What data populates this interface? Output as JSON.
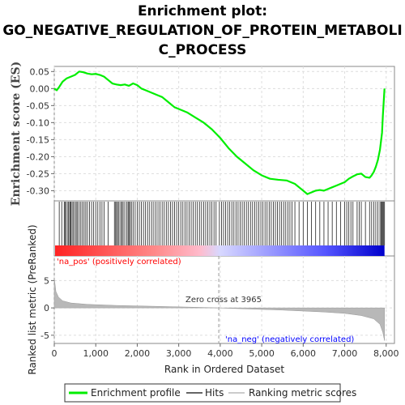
{
  "chart_data": {
    "type": "line",
    "title_lines": [
      "Enrichment plot:",
      "GO_NEGATIVE_REGULATION_OF_PROTEIN_METABOLI",
      "C_PROCESS"
    ],
    "es_panel": {
      "ylabel": "Enrichment score (ES)",
      "ylim": [
        -0.33,
        0.065
      ],
      "yticks": [
        0.05,
        0.0,
        -0.05,
        -0.1,
        -0.15,
        -0.2,
        -0.25,
        -0.3
      ],
      "ytick_labels": [
        "0.05",
        "0.00",
        "-0.05",
        "-0.10",
        "-0.15",
        "-0.20",
        "-0.25",
        "-0.30"
      ],
      "series": [
        {
          "name": "Enrichment profile",
          "color": "#00ee00",
          "points": [
            [
              0,
              0.0
            ],
            [
              60,
              -0.005
            ],
            [
              120,
              0.005
            ],
            [
              200,
              0.02
            ],
            [
              300,
              0.03
            ],
            [
              400,
              0.035
            ],
            [
              500,
              0.04
            ],
            [
              600,
              0.05
            ],
            [
              700,
              0.048
            ],
            [
              800,
              0.044
            ],
            [
              900,
              0.042
            ],
            [
              1000,
              0.043
            ],
            [
              1100,
              0.04
            ],
            [
              1200,
              0.035
            ],
            [
              1300,
              0.025
            ],
            [
              1400,
              0.015
            ],
            [
              1500,
              0.012
            ],
            [
              1600,
              0.01
            ],
            [
              1700,
              0.012
            ],
            [
              1800,
              0.008
            ],
            [
              1900,
              0.015
            ],
            [
              2000,
              0.01
            ],
            [
              2100,
              0.0
            ],
            [
              2200,
              -0.005
            ],
            [
              2300,
              -0.01
            ],
            [
              2400,
              -0.015
            ],
            [
              2500,
              -0.02
            ],
            [
              2600,
              -0.025
            ],
            [
              2700,
              -0.035
            ],
            [
              2800,
              -0.045
            ],
            [
              2900,
              -0.055
            ],
            [
              3000,
              -0.06
            ],
            [
              3200,
              -0.07
            ],
            [
              3400,
              -0.085
            ],
            [
              3600,
              -0.1
            ],
            [
              3800,
              -0.12
            ],
            [
              4000,
              -0.145
            ],
            [
              4200,
              -0.175
            ],
            [
              4400,
              -0.2
            ],
            [
              4600,
              -0.22
            ],
            [
              4800,
              -0.24
            ],
            [
              5000,
              -0.255
            ],
            [
              5200,
              -0.265
            ],
            [
              5400,
              -0.268
            ],
            [
              5600,
              -0.27
            ],
            [
              5800,
              -0.28
            ],
            [
              5900,
              -0.29
            ],
            [
              6000,
              -0.3
            ],
            [
              6050,
              -0.305
            ],
            [
              6100,
              -0.31
            ],
            [
              6200,
              -0.305
            ],
            [
              6300,
              -0.3
            ],
            [
              6400,
              -0.298
            ],
            [
              6500,
              -0.3
            ],
            [
              6600,
              -0.295
            ],
            [
              6700,
              -0.29
            ],
            [
              6800,
              -0.285
            ],
            [
              6900,
              -0.28
            ],
            [
              7000,
              -0.275
            ],
            [
              7100,
              -0.265
            ],
            [
              7200,
              -0.258
            ],
            [
              7300,
              -0.252
            ],
            [
              7400,
              -0.25
            ],
            [
              7500,
              -0.26
            ],
            [
              7600,
              -0.262
            ],
            [
              7650,
              -0.255
            ],
            [
              7700,
              -0.245
            ],
            [
              7750,
              -0.23
            ],
            [
              7800,
              -0.21
            ],
            [
              7850,
              -0.18
            ],
            [
              7900,
              -0.13
            ],
            [
              7920,
              -0.08
            ],
            [
              7940,
              -0.04
            ],
            [
              7960,
              0.0
            ]
          ]
        }
      ]
    },
    "hits_panel": {
      "bar_colors": [
        "#ff2222",
        "#ff8888",
        "#ffbbcc",
        "#d8d8ff",
        "#5555ff",
        "#0000cc"
      ],
      "hit_positions": [
        120,
        180,
        240,
        260,
        290,
        330,
        350,
        380,
        400,
        430,
        460,
        500,
        530,
        560,
        600,
        640,
        680,
        720,
        760,
        800,
        850,
        900,
        950,
        1000,
        1050,
        1100,
        1150,
        1200,
        1300,
        1450,
        1480,
        1500,
        1530,
        1560,
        1600,
        1630,
        1660,
        1700,
        1750,
        1780,
        1800,
        1830,
        1860,
        1900,
        1950,
        2000,
        2050,
        2100,
        2150,
        2200,
        2250,
        2300,
        2350,
        2400,
        2450,
        2500,
        2550,
        2600,
        2650,
        2700,
        2750,
        2800,
        2850,
        2900,
        2950,
        3000,
        3050,
        3100,
        3150,
        3200,
        3250,
        3300,
        3350,
        3400,
        3450,
        3500,
        3550,
        3600,
        3650,
        3700,
        3750,
        3800,
        3850,
        3900,
        3980,
        4030,
        4080,
        4130,
        4180,
        4230,
        4280,
        4330,
        4380,
        4430,
        4480,
        4530,
        4580,
        4630,
        4680,
        4730,
        4780,
        4830,
        4880,
        4930,
        4980,
        5030,
        5080,
        5130,
        5180,
        5230,
        5280,
        5330,
        5380,
        5430,
        5480,
        5530,
        5580,
        5630,
        5680,
        5730,
        5800,
        5900,
        6000,
        6100,
        6200,
        6300,
        6400,
        6500,
        6600,
        6700,
        6800,
        6900,
        7000,
        7050,
        7100,
        7150,
        7200,
        7300,
        7350,
        7400,
        7500,
        7600,
        7650,
        7700,
        7750,
        7800,
        7850,
        7880,
        7900,
        7920,
        7940,
        7960
      ]
    },
    "metric_panel": {
      "ylabel": "Ranked list metric (PreRanked)",
      "xlabel": "Rank in Ordered Dataset",
      "ylim": [
        -6.5,
        9.5
      ],
      "yticks": [
        5,
        0,
        -5
      ],
      "ytick_labels": [
        "5",
        "0",
        "-5"
      ],
      "zero_cross_text": "Zero cross at 3965",
      "zero_cross": 3965,
      "pos_label": "'na_pos' (positively correlated)",
      "neg_label": "'na_neg' (negatively correlated)",
      "pos_color": "#ff0000",
      "neg_color": "#0000ff",
      "points": [
        [
          0,
          5.5
        ],
        [
          40,
          3.0
        ],
        [
          100,
          2.0
        ],
        [
          200,
          1.3
        ],
        [
          400,
          0.9
        ],
        [
          800,
          0.65
        ],
        [
          1500,
          0.45
        ],
        [
          2500,
          0.28
        ],
        [
          3500,
          0.1
        ],
        [
          3965,
          0.0
        ],
        [
          4500,
          -0.15
        ],
        [
          5500,
          -0.4
        ],
        [
          6500,
          -0.75
        ],
        [
          7000,
          -1.0
        ],
        [
          7400,
          -1.4
        ],
        [
          7700,
          -2.0
        ],
        [
          7850,
          -3.0
        ],
        [
          7920,
          -4.5
        ],
        [
          7960,
          -6.0
        ]
      ]
    },
    "xlim": [
      0,
      8200
    ],
    "xticks": [
      0,
      1000,
      2000,
      3000,
      4000,
      5000,
      6000,
      7000,
      8000
    ],
    "xtick_labels": [
      "0",
      "1,000",
      "2,000",
      "3,000",
      "4,000",
      "5,000",
      "6,000",
      "7,000",
      "8,000"
    ],
    "legend": [
      {
        "label": "Enrichment profile",
        "color": "#00ee00"
      },
      {
        "label": "Hits",
        "color": "#666666"
      },
      {
        "label": "Ranking metric scores",
        "color": "#cccccc"
      }
    ]
  }
}
